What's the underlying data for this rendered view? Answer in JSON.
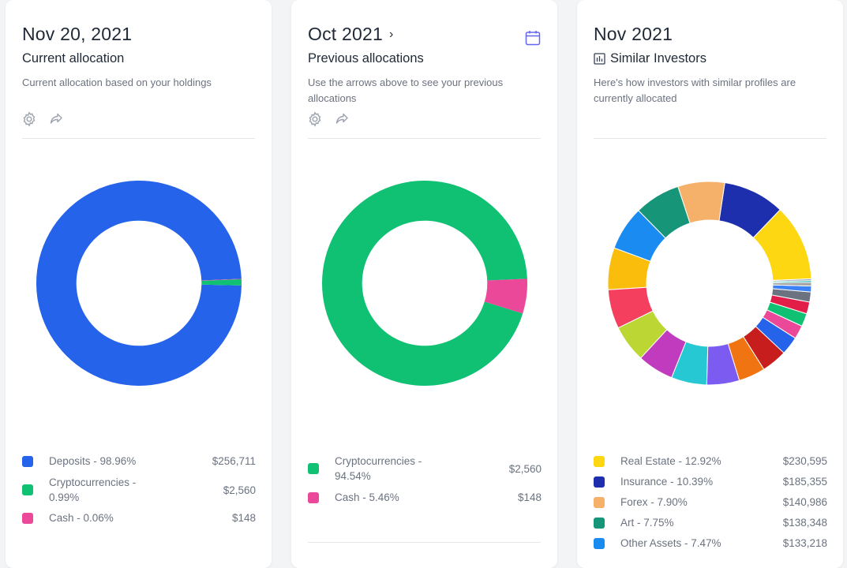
{
  "cards": [
    {
      "date": "Nov 20, 2021",
      "subtitle": "Current allocation",
      "description": "Current allocation based on your holdings",
      "legend": [
        {
          "label": "Deposits - 98.96%",
          "value": "$256,711",
          "color": "#2563eb"
        },
        {
          "label": "Cryptocurrencies - 0.99%",
          "value": "$2,560",
          "color": "#10c173"
        },
        {
          "label": "Cash - 0.06%",
          "value": "$148",
          "color": "#ec4899"
        }
      ]
    },
    {
      "date": "Oct 2021",
      "chevron": "›",
      "subtitle": "Previous allocations",
      "description": "Use the arrows above to see your previous allocations",
      "legend": [
        {
          "label": "Cryptocurrencies - 94.54%",
          "value": "$2,560",
          "color": "#10c173"
        },
        {
          "label": "Cash - 5.46%",
          "value": "$148",
          "color": "#ec4899"
        }
      ]
    },
    {
      "date": "Nov 2021",
      "subtitle": "Similar Investors",
      "description": "Here's how investors with similar profiles are currently allocated",
      "legend": [
        {
          "label": "Real Estate - 12.92%",
          "value": "$230,595",
          "color": "#fcd712"
        },
        {
          "label": "Insurance - 10.39%",
          "value": "$185,355",
          "color": "#1e2fad"
        },
        {
          "label": "Forex - 7.90%",
          "value": "$140,986",
          "color": "#f5b06a"
        },
        {
          "label": "Art - 7.75%",
          "value": "$138,348",
          "color": "#169579"
        },
        {
          "label": "Other Assets - 7.47%",
          "value": "$133,218",
          "color": "#1a8bf0"
        }
      ]
    }
  ],
  "chart_data": [
    {
      "type": "pie",
      "title": "Current allocation",
      "categories": [
        "Deposits",
        "Cryptocurrencies",
        "Cash"
      ],
      "values": [
        98.96,
        0.99,
        0.06
      ],
      "colors": [
        "#2563eb",
        "#10c173",
        "#ec4899"
      ]
    },
    {
      "type": "pie",
      "title": "Previous allocations",
      "categories": [
        "Cryptocurrencies",
        "Cash"
      ],
      "values": [
        94.54,
        5.46
      ],
      "colors": [
        "#10c173",
        "#ec4899"
      ]
    },
    {
      "type": "pie",
      "title": "Similar Investors",
      "categories": [
        "Real Estate",
        "Insurance",
        "Forex",
        "Art",
        "Other Assets",
        "",
        "",
        "",
        "",
        "",
        "",
        "",
        "",
        "",
        "",
        "",
        "",
        "",
        "",
        "",
        "",
        ""
      ],
      "values": [
        12.92,
        10.39,
        7.9,
        7.75,
        7.47,
        7.1,
        6.6,
        6.3,
        6.1,
        6.0,
        5.5,
        4.5,
        4.3,
        3.1,
        2.3,
        2.2,
        2.0,
        1.7,
        1.0,
        0.6,
        0.3,
        0.3
      ],
      "colors": [
        "#fcd712",
        "#1e2fad",
        "#f5b06a",
        "#169579",
        "#1a8bf0",
        "#fbbd0b",
        "#f43f5e",
        "#bcd634",
        "#c13bbf",
        "#26c9d3",
        "#7c5cf0",
        "#f17413",
        "#c81d1d",
        "#2563eb",
        "#ec4899",
        "#10c173",
        "#e11d48",
        "#6b7280",
        "#3b82f6",
        "#a3a3a3",
        "#14b8a6",
        "#94a3b8"
      ]
    }
  ]
}
